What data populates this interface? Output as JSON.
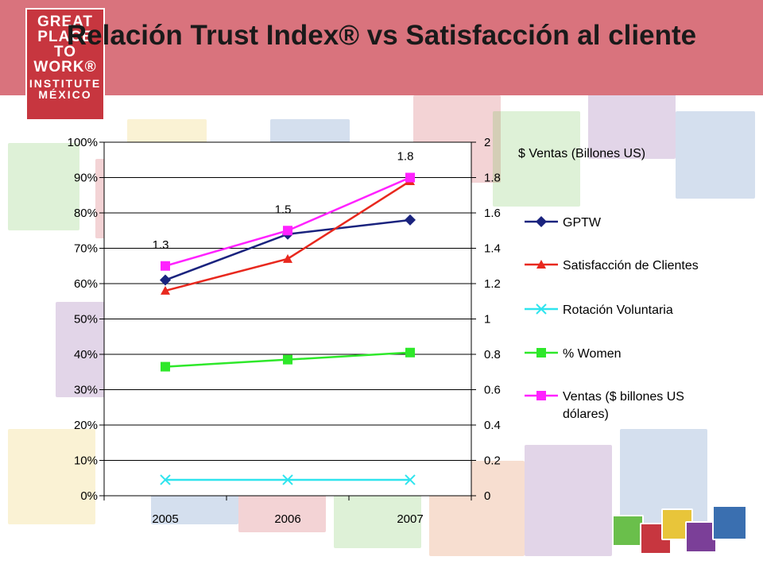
{
  "title": "Relación Trust Index® vs Satisfacción al cliente",
  "logo": {
    "lines": [
      "GREAT",
      "PLACE",
      "TO",
      "WORK®",
      "INSTITUTE",
      "MÉXICO"
    ]
  },
  "colors": {
    "header": "#d9737d",
    "logo": "#c7363f",
    "gptw": "#1a237e",
    "satisfaccion": "#e8281e",
    "rotacion": "#2fe4ee",
    "women": "#2ee82a",
    "ventas": "#ff22ff"
  },
  "chart_data": {
    "type": "line",
    "categories": [
      "2005",
      "2006",
      "2007"
    ],
    "y_left": {
      "ticks": [
        "0%",
        "10%",
        "20%",
        "30%",
        "40%",
        "50%",
        "60%",
        "70%",
        "80%",
        "90%",
        "100%"
      ],
      "range": [
        0,
        100
      ]
    },
    "y_right": {
      "title": "$ Ventas (Billones US)",
      "ticks": [
        "0",
        "0.2",
        "0.4",
        "0.6",
        "0.8",
        "1",
        "1.2",
        "1.4",
        "1.6",
        "1.8",
        "2"
      ],
      "range": [
        0,
        2
      ]
    },
    "gridlines": true,
    "legend_position": "right",
    "series": [
      {
        "name": "GPTW",
        "axis": "left",
        "marker": "diamond",
        "color": "#1a237e",
        "values": [
          61,
          74,
          78
        ]
      },
      {
        "name": "Satisfacción de Clientes",
        "axis": "left",
        "marker": "triangle",
        "color": "#e8281e",
        "values": [
          58,
          67,
          89
        ]
      },
      {
        "name": "Rotación Voluntaria",
        "axis": "left",
        "marker": "x",
        "color": "#2fe4ee",
        "values": [
          4.5,
          4.5,
          4.5
        ]
      },
      {
        "name": "% Women",
        "axis": "left",
        "marker": "square",
        "color": "#2ee82a",
        "values": [
          36.5,
          38.5,
          40.5
        ]
      },
      {
        "name": "Ventas ($ billones US dólares)",
        "axis": "right",
        "marker": "square",
        "color": "#ff22ff",
        "values": [
          1.3,
          1.5,
          1.8
        ],
        "data_labels": [
          "1.3",
          "1.5",
          "1.8"
        ]
      }
    ]
  }
}
